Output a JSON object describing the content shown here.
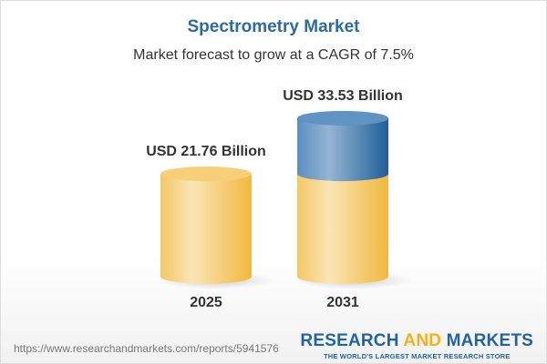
{
  "header": {
    "title": "Spectrometry Market",
    "subtitle": "Market forecast to grow at a CAGR of 7.5%"
  },
  "chart_data": {
    "type": "bar",
    "style": "3d-cylinder",
    "categories": [
      "2025",
      "2031"
    ],
    "values": [
      21.76,
      33.53
    ],
    "data_labels": [
      "USD 21.76 Billion",
      "USD 33.53 Billion"
    ],
    "unit": "USD Billion",
    "colors": {
      "base": "#f5c55a",
      "growth": "#4f86b8"
    }
  },
  "footer": {
    "url": "https://www.researchandmarkets.com/reports/5941576",
    "logo_part1": "RESEARCH ",
    "logo_part2": "AND",
    "logo_part3": " MARKETS",
    "tagline": "THE WORLD'S LARGEST MARKET RESEARCH STORE"
  }
}
